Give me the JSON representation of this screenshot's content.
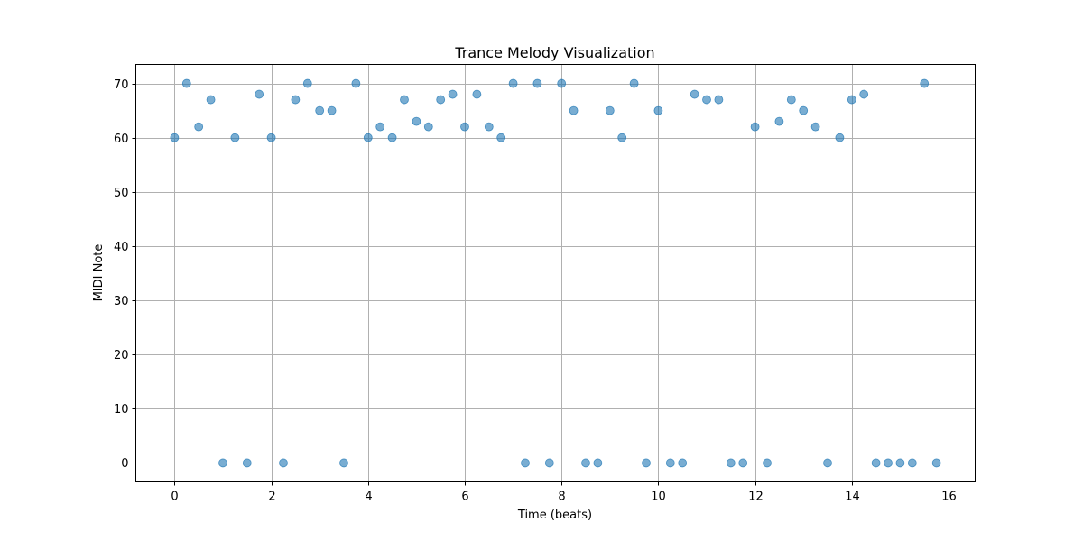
{
  "chart_data": {
    "type": "scatter",
    "title": "Trance Melody Visualization",
    "xlabel": "Time (beats)",
    "ylabel": "MIDI Note",
    "xlim": [
      -0.8,
      16.55
    ],
    "ylim": [
      -3.5,
      73.5
    ],
    "xticks": [
      0,
      2,
      4,
      6,
      8,
      10,
      12,
      14,
      16
    ],
    "yticks": [
      0,
      10,
      20,
      30,
      40,
      50,
      60,
      70
    ],
    "grid": true,
    "marker_color": "#1f77b4",
    "marker_alpha": 0.6,
    "points": [
      {
        "x": 0,
        "y": 60
      },
      {
        "x": 0.25,
        "y": 70
      },
      {
        "x": 0.5,
        "y": 62
      },
      {
        "x": 0.75,
        "y": 67
      },
      {
        "x": 1,
        "y": 0
      },
      {
        "x": 1.25,
        "y": 60
      },
      {
        "x": 1.5,
        "y": 0
      },
      {
        "x": 1.75,
        "y": 68
      },
      {
        "x": 2,
        "y": 60
      },
      {
        "x": 2.25,
        "y": 0
      },
      {
        "x": 2.5,
        "y": 67
      },
      {
        "x": 2.75,
        "y": 70
      },
      {
        "x": 3,
        "y": 65
      },
      {
        "x": 3.25,
        "y": 65
      },
      {
        "x": 3.5,
        "y": 0
      },
      {
        "x": 3.75,
        "y": 70
      },
      {
        "x": 4,
        "y": 60
      },
      {
        "x": 4.25,
        "y": 62
      },
      {
        "x": 4.5,
        "y": 60
      },
      {
        "x": 4.75,
        "y": 67
      },
      {
        "x": 5,
        "y": 63
      },
      {
        "x": 5.25,
        "y": 62
      },
      {
        "x": 5.5,
        "y": 67
      },
      {
        "x": 5.75,
        "y": 68
      },
      {
        "x": 6,
        "y": 62
      },
      {
        "x": 6.25,
        "y": 68
      },
      {
        "x": 6.5,
        "y": 62
      },
      {
        "x": 6.75,
        "y": 60
      },
      {
        "x": 7,
        "y": 70
      },
      {
        "x": 7.25,
        "y": 0
      },
      {
        "x": 7.5,
        "y": 70
      },
      {
        "x": 7.75,
        "y": 0
      },
      {
        "x": 8,
        "y": 70
      },
      {
        "x": 8.25,
        "y": 65
      },
      {
        "x": 8.5,
        "y": 0
      },
      {
        "x": 8.75,
        "y": 0
      },
      {
        "x": 9,
        "y": 65
      },
      {
        "x": 9.25,
        "y": 60
      },
      {
        "x": 9.5,
        "y": 70
      },
      {
        "x": 9.75,
        "y": 0
      },
      {
        "x": 10,
        "y": 65
      },
      {
        "x": 10.25,
        "y": 0
      },
      {
        "x": 10.5,
        "y": 0
      },
      {
        "x": 10.75,
        "y": 68
      },
      {
        "x": 11,
        "y": 67
      },
      {
        "x": 11.25,
        "y": 67
      },
      {
        "x": 11.5,
        "y": 0
      },
      {
        "x": 11.75,
        "y": 0
      },
      {
        "x": 12,
        "y": 62
      },
      {
        "x": 12.25,
        "y": 0
      },
      {
        "x": 12.5,
        "y": 63
      },
      {
        "x": 12.75,
        "y": 67
      },
      {
        "x": 13,
        "y": 65
      },
      {
        "x": 13.25,
        "y": 62
      },
      {
        "x": 13.5,
        "y": 0
      },
      {
        "x": 13.75,
        "y": 60
      },
      {
        "x": 14,
        "y": 67
      },
      {
        "x": 14.25,
        "y": 68
      },
      {
        "x": 14.5,
        "y": 0
      },
      {
        "x": 14.75,
        "y": 0
      },
      {
        "x": 15,
        "y": 0
      },
      {
        "x": 15.25,
        "y": 0
      },
      {
        "x": 15.5,
        "y": 70
      },
      {
        "x": 15.75,
        "y": 0
      }
    ]
  }
}
